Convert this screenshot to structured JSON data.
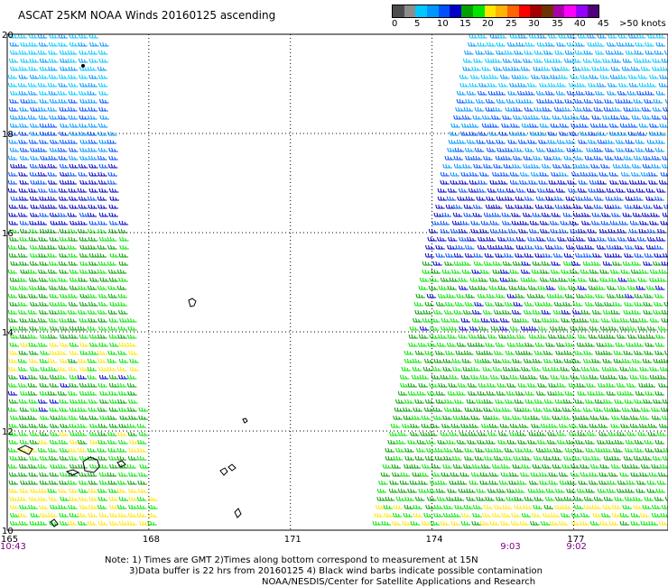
{
  "title": "ASCAT 25KM NOAA Winds 20160125 ascending",
  "legend": {
    "colors": [
      "#4d4d4d",
      "#8c8c8c",
      "#00c8ff",
      "#0096ff",
      "#0050ff",
      "#0000c8",
      "#00a000",
      "#00e600",
      "#ffe600",
      "#ffb400",
      "#ff6400",
      "#ff0000",
      "#a50000",
      "#6e3200",
      "#aa00aa",
      "#ff00ff",
      "#9600ff",
      "#500078"
    ],
    "labels": [
      "0",
      "5",
      "10",
      "15",
      "20",
      "25",
      "30",
      "35",
      "40",
      "45",
      ">50 knots"
    ],
    "unit": "knots"
  },
  "map": {
    "lon_range": [
      165,
      179
    ],
    "lat_range": [
      10,
      20
    ],
    "lon_ticks": [
      "165",
      "168",
      "171",
      "174",
      "177"
    ],
    "lat_ticks": [
      "20",
      "18",
      "16",
      "14",
      "12",
      "10"
    ],
    "pass_times": [
      {
        "label": "10:43",
        "lon": 165
      },
      {
        "label": "9:03",
        "lon": 175.6
      },
      {
        "label": "9:02",
        "lon": 177
      }
    ]
  },
  "notes": {
    "line1": "Note: 1) Times are GMT 2)Times along bottom correspond to measurement at 15N",
    "line2": "3)Data buffer is 22 hrs from 20160125 4) Black wind barbs indicate possible contamination",
    "line3": "NOAA/NESDIS/Center for Satellite Applications and Research"
  }
}
